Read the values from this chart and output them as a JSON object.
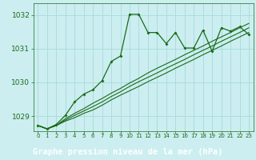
{
  "background_color": "#cceef0",
  "plot_bg": "#cceef0",
  "grid_color": "#aadddd",
  "line_color": "#1a6b1a",
  "title": "Graphe pression niveau de la mer (hPa)",
  "title_bg": "#2a6000",
  "title_fg": "#ffffff",
  "xlim": [
    -0.5,
    23.5
  ],
  "ylim": [
    1028.55,
    1032.35
  ],
  "yticks": [
    1029,
    1030,
    1031,
    1032
  ],
  "xticks": [
    0,
    1,
    2,
    3,
    4,
    5,
    6,
    7,
    8,
    9,
    10,
    11,
    12,
    13,
    14,
    15,
    16,
    17,
    18,
    19,
    20,
    21,
    22,
    23
  ],
  "series0": [
    1028.72,
    1028.62,
    1028.75,
    1029.02,
    1029.42,
    1029.65,
    1029.78,
    1030.05,
    1030.62,
    1030.78,
    1032.02,
    1032.02,
    1031.48,
    1031.48,
    1031.15,
    1031.48,
    1031.02,
    1031.02,
    1031.55,
    1030.92,
    1031.62,
    1031.52,
    1031.65,
    1031.42
  ],
  "series1": [
    1028.72,
    1028.62,
    1028.72,
    1028.85,
    1028.95,
    1029.08,
    1029.18,
    1029.32,
    1029.48,
    1029.62,
    1029.75,
    1029.88,
    1030.02,
    1030.15,
    1030.28,
    1030.42,
    1030.55,
    1030.68,
    1030.82,
    1030.95,
    1031.08,
    1031.22,
    1031.35,
    1031.48
  ],
  "series2": [
    1028.72,
    1028.62,
    1028.72,
    1028.88,
    1029.02,
    1029.15,
    1029.28,
    1029.42,
    1029.58,
    1029.72,
    1029.88,
    1030.02,
    1030.15,
    1030.28,
    1030.42,
    1030.55,
    1030.68,
    1030.82,
    1030.95,
    1031.08,
    1031.22,
    1031.35,
    1031.48,
    1031.62
  ],
  "series3": [
    1028.72,
    1028.62,
    1028.72,
    1028.92,
    1029.08,
    1029.22,
    1029.38,
    1029.52,
    1029.68,
    1029.82,
    1029.98,
    1030.12,
    1030.28,
    1030.42,
    1030.55,
    1030.68,
    1030.82,
    1030.95,
    1031.08,
    1031.22,
    1031.35,
    1031.48,
    1031.62,
    1031.75
  ]
}
